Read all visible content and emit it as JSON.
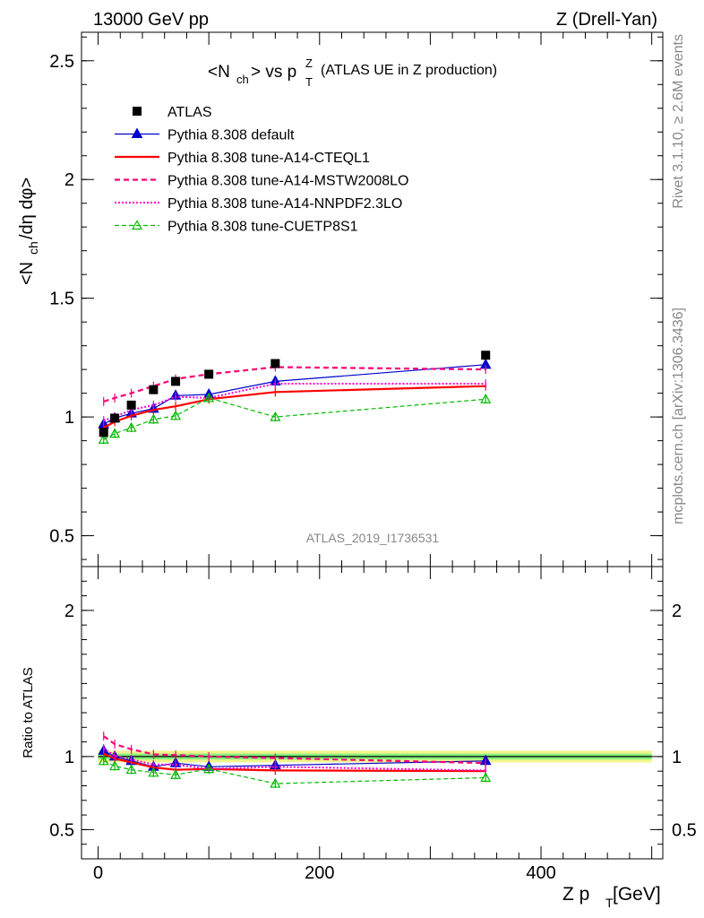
{
  "header": {
    "left": "13000 GeV pp",
    "right": "Z (Drell-Yan)"
  },
  "side_labels": {
    "rivet": "Rivet 3.1.10, ≥ 2.6M events",
    "mcplots": "mcplots.cern.ch [arXiv:1306.3436]"
  },
  "watermark": "ATLAS_2019_I1736531",
  "colors": {
    "atlas": "#000000",
    "default": "#0000cc",
    "cteql1": "#ff0000",
    "mstw": "#ff0077",
    "nnpdf": "#ff00cc",
    "cuetp8s1": "#00bb00",
    "band_outer": "#f2f58a",
    "band_inner": "#86f07e"
  },
  "chart_data": [
    {
      "type": "line",
      "title_main": "<N",
      "title_sub": "ch",
      "title_after": "> vs p",
      "title_sup": "Z",
      "title_sub2": "T",
      "title_note": "(ATLAS UE in Z production)",
      "ylabel": "<N_ch/dη dφ>",
      "ylabel_parts": [
        "<N",
        "ch",
        "/dη dφ>"
      ],
      "xlim": [
        -15,
        510
      ],
      "ylim": [
        0.37,
        2.62
      ],
      "yticks": [
        0.5,
        1,
        1.5,
        2,
        2.5
      ],
      "ytick_labels": [
        "0.5",
        "1",
        "1.5",
        "2",
        "2.5"
      ],
      "x": [
        5,
        15,
        30,
        50,
        70,
        100,
        160,
        350
      ],
      "legend": [
        "ATLAS",
        "Pythia 8.308 default",
        "Pythia 8.308 tune-A14-CTEQL1",
        "Pythia 8.308 tune-A14-MSTW2008LO",
        "Pythia 8.308 tune-A14-NNPDF2.3LO",
        "Pythia 8.308 tune-CUETP8S1"
      ],
      "series": [
        {
          "key": "atlas",
          "name": "ATLAS",
          "values": [
            0.935,
            0.995,
            1.05,
            1.115,
            1.15,
            1.18,
            1.225,
            1.26
          ]
        },
        {
          "key": "default",
          "name": "Pythia 8.308 default",
          "values": [
            0.97,
            0.995,
            1.015,
            1.035,
            1.09,
            1.095,
            1.15,
            1.22
          ]
        },
        {
          "key": "cteql1",
          "name": "Pythia 8.308 tune-A14-CTEQL1",
          "values": [
            0.955,
            0.98,
            1.005,
            1.03,
            1.045,
            1.075,
            1.105,
            1.13
          ]
        },
        {
          "key": "mstw",
          "name": "Pythia 8.308 tune-A14-MSTW2008LO",
          "values": [
            1.065,
            1.08,
            1.1,
            1.13,
            1.16,
            1.18,
            1.21,
            1.2
          ]
        },
        {
          "key": "nnpdf",
          "name": "Pythia 8.308 tune-A14-NNPDF2.3LO",
          "values": [
            0.985,
            1.0,
            1.03,
            1.05,
            1.085,
            1.08,
            1.14,
            1.14
          ]
        },
        {
          "key": "cuetp8s1",
          "name": "Pythia 8.308 tune-CUETP8S1",
          "values": [
            0.905,
            0.93,
            0.955,
            0.99,
            1.005,
            1.08,
            1.0,
            1.075
          ]
        }
      ]
    },
    {
      "type": "line",
      "ylabel": "Ratio to ATLAS",
      "xlabel": "Z p_T [GeV]",
      "xlabel_parts": [
        "Z p",
        "T",
        " [GeV]"
      ],
      "xlim": [
        -15,
        510
      ],
      "ylim": [
        0.3,
        2.3
      ],
      "yticks": [
        0.5,
        1,
        2
      ],
      "ytick_labels": [
        "0.5",
        "1",
        "2"
      ],
      "xticks": [
        0,
        200,
        400
      ],
      "xtick_labels": [
        "0",
        "200",
        "400"
      ],
      "x": [
        5,
        15,
        30,
        50,
        70,
        100,
        160,
        350
      ],
      "band": {
        "inner": 0.02,
        "outer": 0.04
      },
      "series": [
        {
          "key": "default",
          "name": "Pythia 8.308 default",
          "values": [
            1.04,
            1.0,
            0.97,
            0.93,
            0.955,
            0.93,
            0.94,
            0.97
          ]
        },
        {
          "key": "cteql1",
          "name": "Pythia 8.308 tune-A14-CTEQL1",
          "values": [
            1.02,
            0.985,
            0.96,
            0.925,
            0.91,
            0.915,
            0.905,
            0.9
          ]
        },
        {
          "key": "mstw",
          "name": "Pythia 8.308 tune-A14-MSTW2008LO",
          "values": [
            1.14,
            1.085,
            1.05,
            1.015,
            1.01,
            1.0,
            0.99,
            0.955
          ]
        },
        {
          "key": "nnpdf",
          "name": "Pythia 8.308 tune-A14-NNPDF2.3LO",
          "values": [
            1.055,
            1.005,
            0.98,
            0.945,
            0.945,
            0.915,
            0.93,
            0.905
          ]
        },
        {
          "key": "cuetp8s1",
          "name": "Pythia 8.308 tune-CUETP8S1",
          "values": [
            0.97,
            0.935,
            0.91,
            0.89,
            0.875,
            0.915,
            0.815,
            0.855
          ]
        }
      ]
    }
  ]
}
